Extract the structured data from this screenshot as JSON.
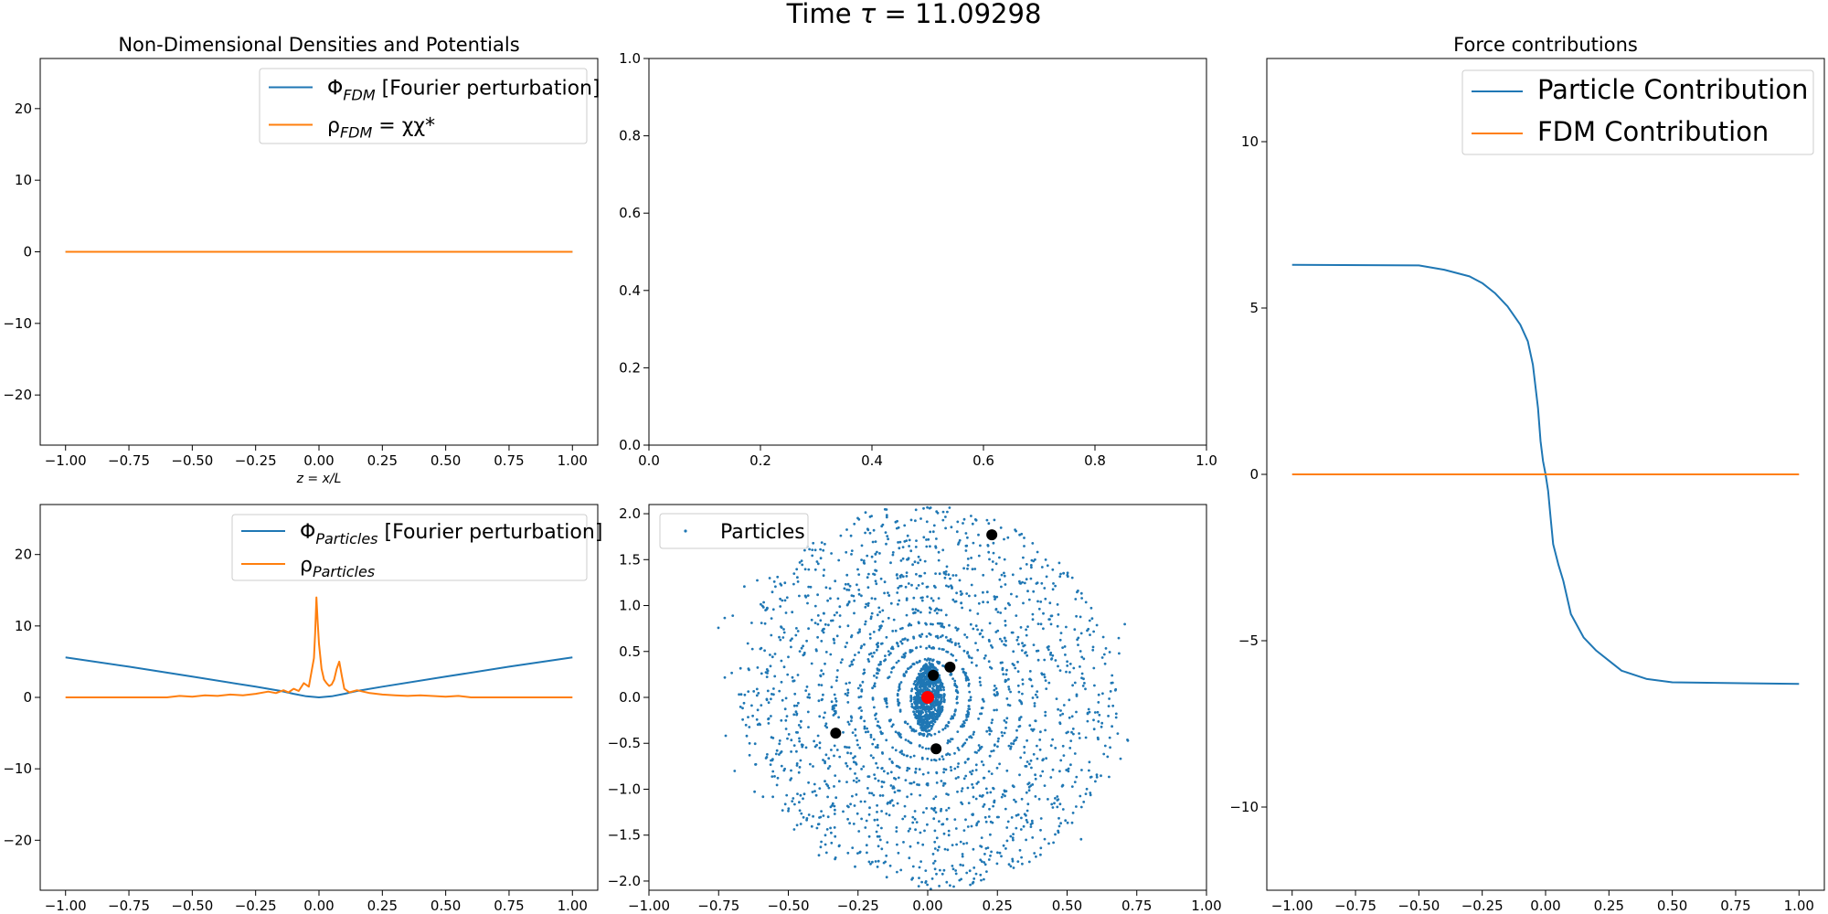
{
  "figure": {
    "title_prefix": "Time ",
    "title_tau": "τ",
    "title_eq": " = ",
    "title_value": "11.09298"
  },
  "colors": {
    "blue": "#1f77b4",
    "orange": "#ff7f0e",
    "red": "#ff0000",
    "black": "#000000"
  },
  "chart_data": [
    {
      "id": "fdm",
      "type": "line",
      "title": "Non-Dimensional Densities and Potentials",
      "xlabel": "z = x/L",
      "xlim": [
        -1.1,
        1.1
      ],
      "ylim": [
        -27,
        27
      ],
      "xticks": [
        -1.0,
        -0.75,
        -0.5,
        -0.25,
        0.0,
        0.25,
        0.5,
        0.75,
        1.0
      ],
      "xtick_labels": [
        "−1.00",
        "−0.75",
        "−0.50",
        "−0.25",
        "0.00",
        "0.25",
        "0.50",
        "0.75",
        "1.00"
      ],
      "yticks": [
        -20,
        -10,
        0,
        10,
        20
      ],
      "ytick_labels": [
        "−20",
        "−10",
        "0",
        "10",
        "20"
      ],
      "legend_position": "upper right",
      "legend": [
        {
          "main": "Φ",
          "sub": "FDM",
          "rest": " [Fourier perturbation]"
        },
        {
          "main": "ρ",
          "sub": "FDM",
          "rest": " = χχ*"
        }
      ],
      "series": [
        {
          "color": "blue",
          "x": [
            -1.0,
            1.0
          ],
          "y": [
            0,
            0
          ]
        },
        {
          "color": "orange",
          "x": [
            -1.0,
            1.0
          ],
          "y": [
            0,
            0
          ]
        }
      ]
    },
    {
      "id": "empty",
      "type": "line",
      "title": "",
      "xlim": [
        0,
        1
      ],
      "ylim": [
        0,
        1
      ],
      "xticks": [
        0,
        0.2,
        0.4,
        0.6,
        0.8,
        1.0
      ],
      "xtick_labels": [
        "0.0",
        "0.2",
        "0.4",
        "0.6",
        "0.8",
        "1.0"
      ],
      "yticks": [
        0,
        0.2,
        0.4,
        0.6,
        0.8,
        1.0
      ],
      "ytick_labels": [
        "0.0",
        "0.2",
        "0.4",
        "0.6",
        "0.8",
        "1.0"
      ],
      "series": []
    },
    {
      "id": "force",
      "type": "line",
      "title": "Force contributions",
      "xlim": [
        -1.1,
        1.1
      ],
      "ylim": [
        -12.5,
        12.5
      ],
      "xticks": [
        -1.0,
        -0.75,
        -0.5,
        -0.25,
        0.0,
        0.25,
        0.5,
        0.75,
        1.0
      ],
      "xtick_labels": [
        "−1.00",
        "−0.75",
        "−0.50",
        "−0.25",
        "0.00",
        "0.25",
        "0.50",
        "0.75",
        "1.00"
      ],
      "yticks": [
        -10,
        -5,
        0,
        5,
        10
      ],
      "ytick_labels": [
        "−10",
        "−5",
        "0",
        "5",
        "10"
      ],
      "legend_position": "upper right",
      "legend": [
        {
          "main": "Particle Contribution"
        },
        {
          "main": "FDM Contribution"
        }
      ],
      "series": [
        {
          "name": "Particle Contribution",
          "color": "blue",
          "x": [
            -1.0,
            -0.5,
            -0.4,
            -0.3,
            -0.25,
            -0.2,
            -0.15,
            -0.1,
            -0.07,
            -0.05,
            -0.03,
            -0.02,
            -0.01,
            0.0,
            0.01,
            0.02,
            0.03,
            0.05,
            0.07,
            0.1,
            0.15,
            0.2,
            0.25,
            0.3,
            0.4,
            0.5,
            1.0
          ],
          "y": [
            6.3,
            6.28,
            6.15,
            5.95,
            5.75,
            5.45,
            5.05,
            4.5,
            4.0,
            3.3,
            2.0,
            1.0,
            0.4,
            0.0,
            -0.5,
            -1.3,
            -2.1,
            -2.7,
            -3.2,
            -4.2,
            -4.9,
            -5.3,
            -5.6,
            -5.9,
            -6.15,
            -6.25,
            -6.3
          ]
        },
        {
          "name": "FDM Contribution",
          "color": "orange",
          "x": [
            -1.0,
            1.0
          ],
          "y": [
            0,
            0
          ]
        }
      ]
    },
    {
      "id": "particles-density",
      "type": "line",
      "xlim": [
        -1.1,
        1.1
      ],
      "ylim": [
        -27,
        27
      ],
      "xticks": [
        -1.0,
        -0.75,
        -0.5,
        -0.25,
        0.0,
        0.25,
        0.5,
        0.75,
        1.0
      ],
      "xtick_labels": [
        "−1.00",
        "−0.75",
        "−0.50",
        "−0.25",
        "0.00",
        "0.25",
        "0.50",
        "0.75",
        "1.00"
      ],
      "yticks": [
        -20,
        -10,
        0,
        10,
        20
      ],
      "ytick_labels": [
        "−20",
        "−10",
        "0",
        "10",
        "20"
      ],
      "legend_position": "upper right",
      "legend": [
        {
          "main": "Φ",
          "sub": "Particles",
          "rest": " [Fourier perturbation]"
        },
        {
          "main": "ρ",
          "sub": "Particles",
          "rest": ""
        }
      ],
      "series": [
        {
          "color": "blue",
          "x": [
            -1.0,
            -0.75,
            -0.5,
            -0.25,
            -0.15,
            -0.1,
            -0.05,
            0.0,
            0.05,
            0.1,
            0.15,
            0.25,
            0.5,
            0.75,
            1.0
          ],
          "y": [
            5.6,
            4.3,
            2.9,
            1.5,
            0.9,
            0.5,
            0.15,
            0.0,
            0.15,
            0.5,
            0.9,
            1.5,
            2.9,
            4.3,
            5.6
          ]
        },
        {
          "color": "orange",
          "x": [
            -1.0,
            -0.6,
            -0.55,
            -0.5,
            -0.45,
            -0.4,
            -0.35,
            -0.3,
            -0.25,
            -0.2,
            -0.17,
            -0.14,
            -0.12,
            -0.1,
            -0.08,
            -0.06,
            -0.04,
            -0.03,
            -0.02,
            -0.015,
            -0.01,
            -0.005,
            0.0,
            0.01,
            0.02,
            0.03,
            0.04,
            0.05,
            0.06,
            0.07,
            0.08,
            0.09,
            0.1,
            0.12,
            0.15,
            0.2,
            0.25,
            0.3,
            0.35,
            0.4,
            0.5,
            0.55,
            0.6,
            1.0
          ],
          "y": [
            0,
            0,
            0.2,
            0.1,
            0.3,
            0.2,
            0.4,
            0.3,
            0.5,
            0.8,
            0.6,
            1.0,
            0.7,
            1.2,
            0.9,
            2.0,
            1.5,
            3.5,
            5.5,
            9.0,
            14.0,
            10.5,
            7.5,
            4.0,
            2.5,
            2.0,
            1.6,
            1.8,
            2.5,
            4.0,
            5.0,
            3.0,
            1.2,
            0.7,
            1.0,
            0.6,
            0.4,
            0.3,
            0.2,
            0.3,
            0.1,
            0.2,
            0,
            0
          ]
        }
      ]
    },
    {
      "id": "phase-space",
      "type": "scatter",
      "xlim": [
        -1.0,
        1.0
      ],
      "ylim": [
        -2.1,
        2.1
      ],
      "xticks": [
        -1.0,
        -0.75,
        -0.5,
        -0.25,
        0.0,
        0.25,
        0.5,
        0.75,
        1.0
      ],
      "xtick_labels": [
        "−1.00",
        "−0.75",
        "−0.50",
        "−0.25",
        "0.00",
        "0.25",
        "0.50",
        "0.75",
        "1.00"
      ],
      "yticks": [
        -2.0,
        -1.5,
        -1.0,
        -0.5,
        0.0,
        0.5,
        1.0,
        1.5,
        2.0
      ],
      "ytick_labels": [
        "−2.0",
        "−1.5",
        "−1.0",
        "−0.5",
        "0.0",
        "0.5",
        "1.0",
        "1.5",
        "2.0"
      ],
      "legend_position": "upper left",
      "legend": [
        {
          "main": "Particles"
        }
      ],
      "orbits": {
        "count": 14,
        "rx_min": 0.06,
        "rx_max": 0.67,
        "ry_min": 0.28,
        "ry_max": 2.05,
        "tilt_deg": -10,
        "points_per_orbit": 170,
        "core_points": 700,
        "core_rx": 0.05,
        "core_ry": 0.38
      },
      "black_points": [
        {
          "x": 0.23,
          "y": 1.77
        },
        {
          "x": 0.08,
          "y": 0.33
        },
        {
          "x": 0.02,
          "y": 0.24
        },
        {
          "x": -0.33,
          "y": -0.39
        },
        {
          "x": 0.03,
          "y": -0.56
        }
      ],
      "red_point": {
        "x": 0.0,
        "y": 0.0
      }
    }
  ]
}
